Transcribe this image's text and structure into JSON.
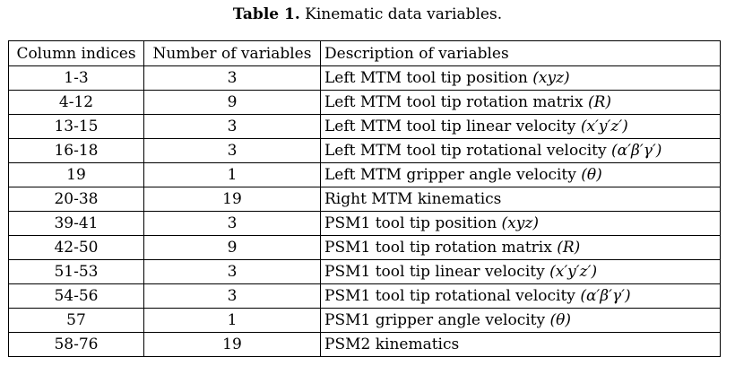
{
  "caption": {
    "label": "Table 1.",
    "text": " Kinematic data variables."
  },
  "table": {
    "headers": [
      "Column indices",
      "Number of variables",
      "Description of variables"
    ],
    "rows": [
      {
        "indices": "1-3",
        "count": "3",
        "desc_prefix": "Left MTM tool tip position ",
        "desc_math": "(xyz)"
      },
      {
        "indices": "4-12",
        "count": "9",
        "desc_prefix": "Left MTM tool tip rotation matrix ",
        "desc_math": "(R)"
      },
      {
        "indices": "13-15",
        "count": "3",
        "desc_prefix": "Left MTM tool tip linear velocity ",
        "desc_math": "(x′y′z′)"
      },
      {
        "indices": "16-18",
        "count": "3",
        "desc_prefix": "Left MTM tool tip rotational velocity ",
        "desc_math": "(α′β′γ′)"
      },
      {
        "indices": "19",
        "count": "1",
        "desc_prefix": "Left MTM gripper angle velocity ",
        "desc_math": "(θ)"
      },
      {
        "indices": "20-38",
        "count": "19",
        "desc_prefix": "Right MTM kinematics",
        "desc_math": ""
      },
      {
        "indices": "39-41",
        "count": "3",
        "desc_prefix": "PSM1 tool tip position ",
        "desc_math": "(xyz)"
      },
      {
        "indices": "42-50",
        "count": "9",
        "desc_prefix": "PSM1 tool tip rotation matrix ",
        "desc_math": "(R)"
      },
      {
        "indices": "51-53",
        "count": "3",
        "desc_prefix": "PSM1 tool tip linear velocity ",
        "desc_math": "(x′y′z′)"
      },
      {
        "indices": "54-56",
        "count": "3",
        "desc_prefix": "PSM1 tool tip rotational velocity ",
        "desc_math": "(α′β′γ′)"
      },
      {
        "indices": "57",
        "count": "1",
        "desc_prefix": "PSM1 gripper angle velocity ",
        "desc_math": "(θ)"
      },
      {
        "indices": "58-76",
        "count": "19",
        "desc_prefix": "PSM2 kinematics",
        "desc_math": ""
      }
    ]
  }
}
